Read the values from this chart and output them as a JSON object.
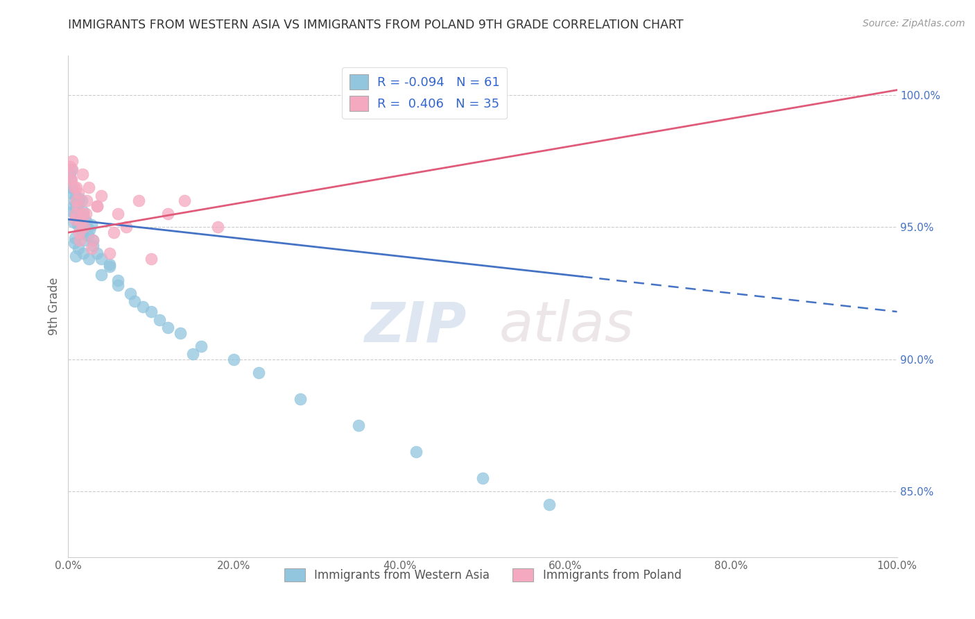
{
  "title": "IMMIGRANTS FROM WESTERN ASIA VS IMMIGRANTS FROM POLAND 9TH GRADE CORRELATION CHART",
  "source": "Source: ZipAtlas.com",
  "ylabel": "9th Grade",
  "legend_label_blue": "Immigrants from Western Asia",
  "legend_label_pink": "Immigrants from Poland",
  "R_blue": -0.094,
  "N_blue": 61,
  "R_pink": 0.406,
  "N_pink": 35,
  "blue_color": "#92c5de",
  "pink_color": "#f4a9c0",
  "blue_line_color": "#4472c4",
  "pink_line_color": "#e05a7a",
  "right_yticks": [
    85.0,
    90.0,
    95.0,
    100.0
  ],
  "watermark_zip": "ZIP",
  "watermark_atlas": "atlas",
  "xlim": [
    0.0,
    100.0
  ],
  "ylim": [
    82.5,
    101.5
  ],
  "blue_trend_x0": 0.0,
  "blue_trend_y0": 95.3,
  "blue_trend_x1": 100.0,
  "blue_trend_y1": 91.8,
  "blue_dash_start": 62.0,
  "pink_trend_x0": 0.0,
  "pink_trend_y0": 94.8,
  "pink_trend_x1": 100.0,
  "pink_trend_y1": 100.2,
  "blue_scatter_x": [
    0.3,
    0.4,
    0.5,
    0.6,
    0.7,
    0.8,
    0.9,
    1.0,
    1.1,
    1.2,
    1.3,
    1.5,
    1.6,
    1.7,
    1.8,
    2.0,
    2.2,
    2.4,
    2.6,
    2.8,
    3.0,
    3.5,
    4.0,
    5.0,
    6.0,
    7.5,
    9.0,
    11.0,
    13.5,
    16.0,
    20.0,
    23.0,
    28.0,
    35.0,
    42.0,
    50.0,
    58.0,
    0.2,
    0.4,
    0.6,
    0.8,
    1.0,
    1.2,
    1.4,
    1.6,
    1.8,
    2.0,
    2.5,
    3.0,
    4.0,
    5.0,
    6.0,
    8.0,
    10.0,
    12.0,
    15.0,
    0.3,
    0.5,
    0.7,
    0.9,
    1.1
  ],
  "blue_scatter_y": [
    96.8,
    97.2,
    96.5,
    95.8,
    96.0,
    95.5,
    96.2,
    95.7,
    95.3,
    95.9,
    96.1,
    95.0,
    95.4,
    94.8,
    95.6,
    94.5,
    95.2,
    94.7,
    94.9,
    95.1,
    94.3,
    94.0,
    93.8,
    93.5,
    93.0,
    92.5,
    92.0,
    91.5,
    91.0,
    90.5,
    90.0,
    89.5,
    88.5,
    87.5,
    86.5,
    85.5,
    84.5,
    97.0,
    96.3,
    95.2,
    94.6,
    95.8,
    94.2,
    95.5,
    96.0,
    94.0,
    95.3,
    93.8,
    94.5,
    93.2,
    93.6,
    92.8,
    92.2,
    91.8,
    91.2,
    90.2,
    96.5,
    95.6,
    94.4,
    93.9,
    95.1
  ],
  "pink_scatter_x": [
    0.2,
    0.4,
    0.5,
    0.7,
    0.9,
    1.0,
    1.1,
    1.2,
    1.3,
    1.5,
    1.7,
    1.9,
    2.1,
    2.5,
    3.0,
    3.5,
    4.0,
    5.0,
    6.0,
    7.0,
    8.5,
    10.0,
    12.0,
    14.0,
    18.0,
    0.3,
    0.5,
    0.8,
    1.0,
    1.4,
    1.8,
    2.2,
    2.8,
    3.5,
    5.5
  ],
  "pink_scatter_y": [
    97.3,
    96.8,
    97.5,
    96.5,
    95.5,
    96.0,
    95.8,
    96.3,
    94.8,
    95.2,
    97.0,
    95.0,
    95.5,
    96.5,
    94.5,
    95.8,
    96.2,
    94.0,
    95.5,
    95.0,
    96.0,
    93.8,
    95.5,
    96.0,
    95.0,
    96.8,
    97.2,
    95.3,
    96.5,
    94.5,
    95.5,
    96.0,
    94.2,
    95.8,
    94.8
  ]
}
